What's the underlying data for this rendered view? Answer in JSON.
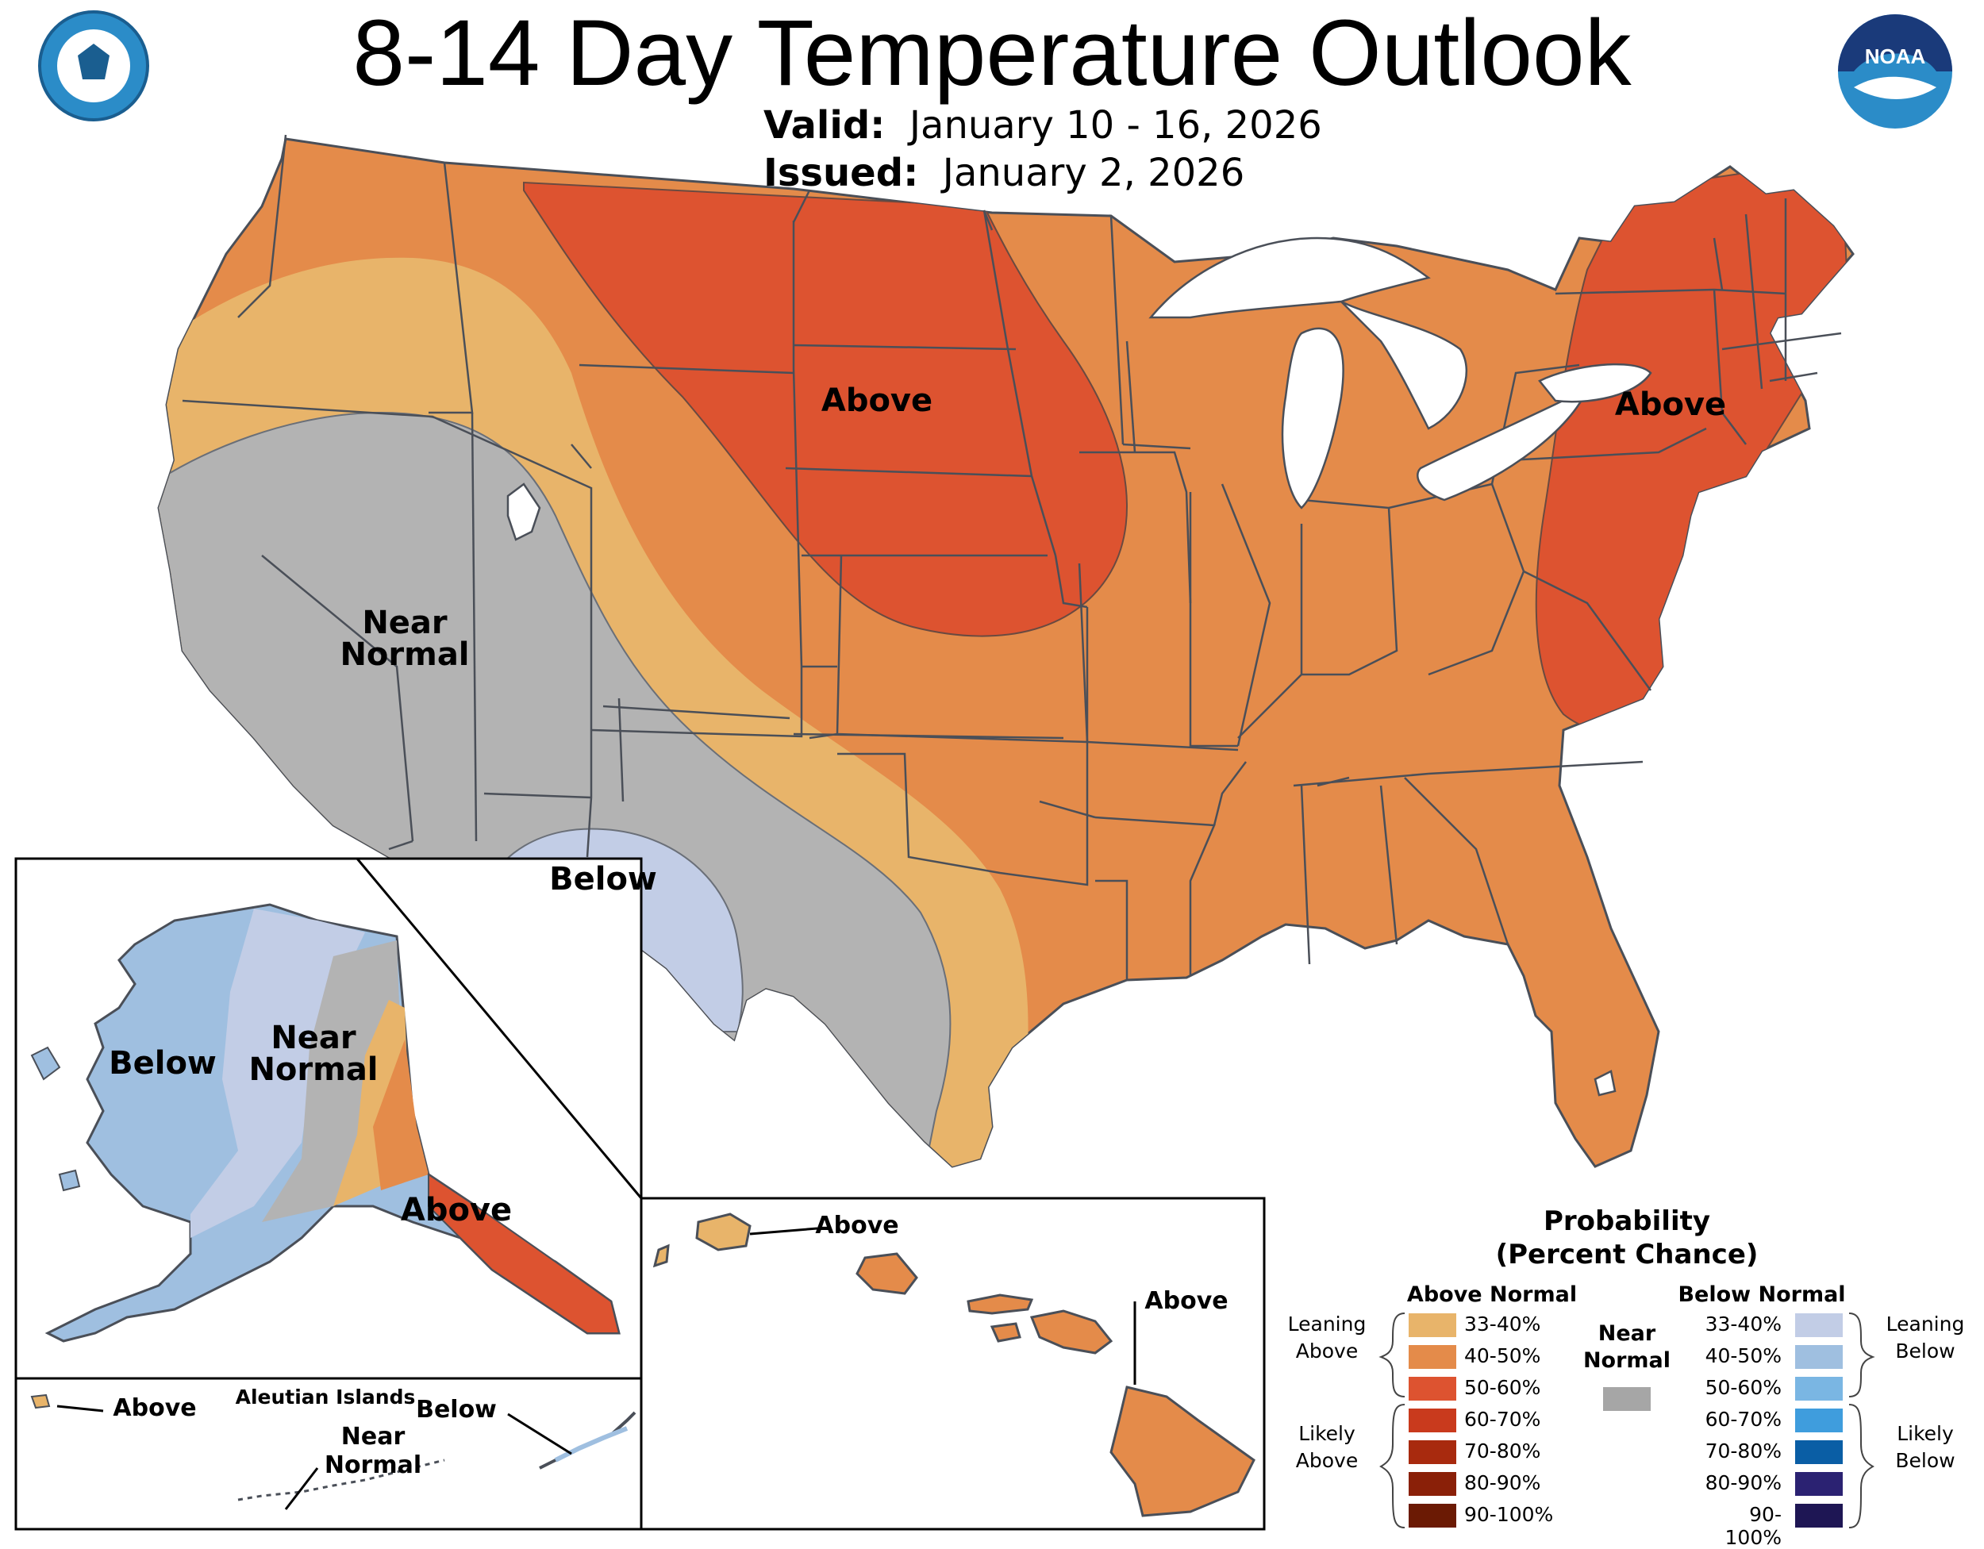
{
  "header": {
    "title": "8-14 Day Temperature Outlook",
    "valid_label": "Valid:",
    "valid_value": "January 10 - 16, 2026",
    "issued_label": "Issued:",
    "issued_value": "January 2, 2026"
  },
  "logos": {
    "left": "department-of-commerce-seal",
    "right": "noaa-logo",
    "noaa_text": "NOAA"
  },
  "map_labels": {
    "conus_above_plains": "Above",
    "conus_above_east": "Above",
    "conus_near_normal_1": "Near",
    "conus_near_normal_2": "Normal",
    "conus_below": "Below",
    "alaska_below": "Below",
    "alaska_near_1": "Near",
    "alaska_near_2": "Normal",
    "alaska_above": "Above",
    "aleutian_title": "Aleutian Islands",
    "aleutian_above": "Above",
    "aleutian_below": "Below",
    "aleutian_near_1": "Near",
    "aleutian_near_2": "Normal",
    "hawaii_above_1": "Above",
    "hawaii_above_2": "Above"
  },
  "legend": {
    "title_1": "Probability",
    "title_2": "(Percent Chance)",
    "above_header": "Above Normal",
    "below_header": "Below Normal",
    "near_1": "Near",
    "near_2": "Normal",
    "leaning_above_1": "Leaning",
    "leaning_above_2": "Above",
    "likely_above_1": "Likely",
    "likely_above_2": "Above",
    "leaning_below_1": "Leaning",
    "leaning_below_2": "Below",
    "likely_below_1": "Likely",
    "likely_below_2": "Below",
    "above_ranges": [
      "33-40%",
      "40-50%",
      "50-60%",
      "60-70%",
      "70-80%",
      "80-90%",
      "90-100%"
    ],
    "below_ranges": [
      "33-40%",
      "40-50%",
      "50-60%",
      "60-70%",
      "70-80%",
      "80-90%",
      "90-100%"
    ],
    "above_colors": [
      "#e8b46a",
      "#e48b4a",
      "#dd5330",
      "#c93a1d",
      "#a82a0e",
      "#8a2008",
      "#6b1a04"
    ],
    "below_colors": [
      "#c2cde6",
      "#9fbfe0",
      "#7ab6e3",
      "#3f9ddd",
      "#0a5ea5",
      "#2b2272",
      "#1e1654"
    ],
    "near_color": "#a6a6a6"
  },
  "colors": {
    "above_lean": "#e8b46a",
    "above_40": "#e48b4a",
    "above_50": "#dd5330",
    "near_normal": "#b3b3b3",
    "below_lean": "#c2cde6",
    "below_40": "#9fbfe0",
    "border": "#555a66",
    "lake": "#ffffff"
  }
}
